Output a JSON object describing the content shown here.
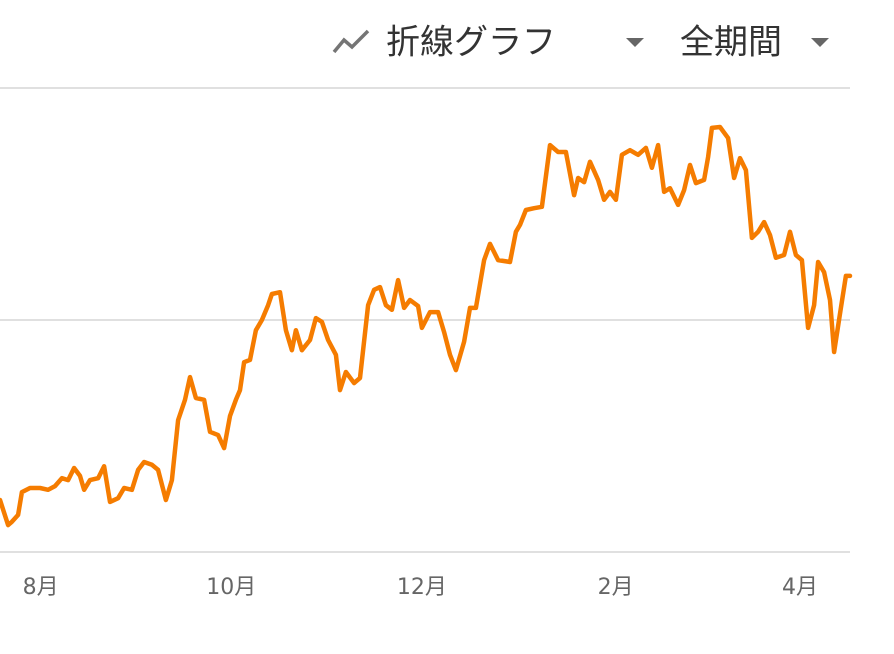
{
  "toolbar": {
    "chart_type": "折線グラフ",
    "period": "全期間"
  },
  "chart_data": {
    "type": "line",
    "x": [
      0,
      2.6,
      3.8,
      5.8,
      7.0,
      9.6,
      12.8,
      15.4,
      17.6,
      19.8,
      21.8,
      23.7,
      25.6,
      26.9,
      28.8,
      31.4,
      33.3,
      35.2,
      37.8,
      39.7,
      42.2,
      44.2,
      46.1,
      48.6,
      50.6,
      53.1,
      55.0,
      57.0,
      59.2,
      60.8,
      62.7,
      65.3,
      67.2,
      69.8,
      71.7,
      73.6,
      75.5,
      76.8,
      78.1,
      80.0,
      81.9,
      83.8,
      85.8,
      87.0,
      89.6,
      91.5,
      93.4,
      94.7,
      96.6,
      99.2,
      101.1,
      103.0,
      105.0,
      107.5,
      108.8,
      110.7,
      113.3,
      115.2,
      117.8,
      119.7,
      121.6,
      123.5,
      125.4,
      127.4,
      129.3,
      131.2,
      133.8,
      135.0,
      137.6,
      140.2,
      142.1,
      144.0,
      145.9,
      148.5,
      150.4,
      152.3,
      154.9,
      156.8,
      159.4,
      163.2,
      165.1,
      166.4,
      168.3,
      170.9,
      173.4,
      176.0,
      178.6,
      181.1,
      183.7,
      185.0,
      186.9,
      188.8,
      191.4,
      193.3,
      195.2,
      197.1,
      199.0,
      201.6,
      204.2,
      206.7,
      208.6,
      210.6,
      212.5,
      214.4,
      217.0,
      218.9,
      220.8,
      222.7,
      225.3,
      226.6,
      227.8,
      230.4,
      233.0,
      234.9,
      236.8,
      238.7,
      240.6,
      242.6,
      244.5,
      246.4,
      248.3,
      250.9,
      252.8,
      254.7,
      256.6,
      258.6,
      260.5,
      261.8,
      263.7,
      265.6,
      266.9,
      269.0,
      270.7,
      272.0
    ],
    "series": [
      {
        "color": "#f57c00",
        "values": [
          11.2,
          5.8,
          6.5,
          8.0,
          12.9,
          13.8,
          13.8,
          13.4,
          14.2,
          15.9,
          15.5,
          18.1,
          16.4,
          13.4,
          15.5,
          15.9,
          18.5,
          10.8,
          11.6,
          13.8,
          13.4,
          17.7,
          19.4,
          18.8,
          17.7,
          11.2,
          15.5,
          28.4,
          32.8,
          37.7,
          33.2,
          32.8,
          25.9,
          25.2,
          22.4,
          29.3,
          32.8,
          34.9,
          40.9,
          41.4,
          47.8,
          50.0,
          53.2,
          55.6,
          56.0,
          47.8,
          43.5,
          47.8,
          43.5,
          45.7,
          50.4,
          49.6,
          45.7,
          42.5,
          34.9,
          38.8,
          36.4,
          37.5,
          53.2,
          56.5,
          57.1,
          53.2,
          52.2,
          58.6,
          52.6,
          54.3,
          53.0,
          48.3,
          51.7,
          51.7,
          47.4,
          42.5,
          39.2,
          45.3,
          52.6,
          52.6,
          62.9,
          66.4,
          62.9,
          62.5,
          69.0,
          70.5,
          73.7,
          74.1,
          74.4,
          87.7,
          86.2,
          86.2,
          76.9,
          80.6,
          79.7,
          84.1,
          80.2,
          75.9,
          77.6,
          75.9,
          85.6,
          86.6,
          85.6,
          87.1,
          82.8,
          87.7,
          77.6,
          78.4,
          74.8,
          78.0,
          83.4,
          79.5,
          80.2,
          85.1,
          91.4,
          91.6,
          89.2,
          80.6,
          84.9,
          82.3,
          67.7,
          69.0,
          71.1,
          68.3,
          63.4,
          64.0,
          69.0,
          64.0,
          62.9,
          48.3,
          53.2,
          62.5,
          60.3,
          54.3,
          43.1,
          52.2,
          59.5,
          59.5
        ]
      }
    ],
    "xlim": [
      0,
      272
    ],
    "xticks": [
      {
        "value": 13,
        "label": "8月"
      },
      {
        "value": 74,
        "label": "10月"
      },
      {
        "value": 135,
        "label": "12月"
      },
      {
        "value": 197,
        "label": "2月"
      },
      {
        "value": 256,
        "label": "4月"
      }
    ],
    "ylim": [
      0,
      100
    ],
    "yticks": [
      0,
      50,
      100
    ],
    "grid": true
  }
}
